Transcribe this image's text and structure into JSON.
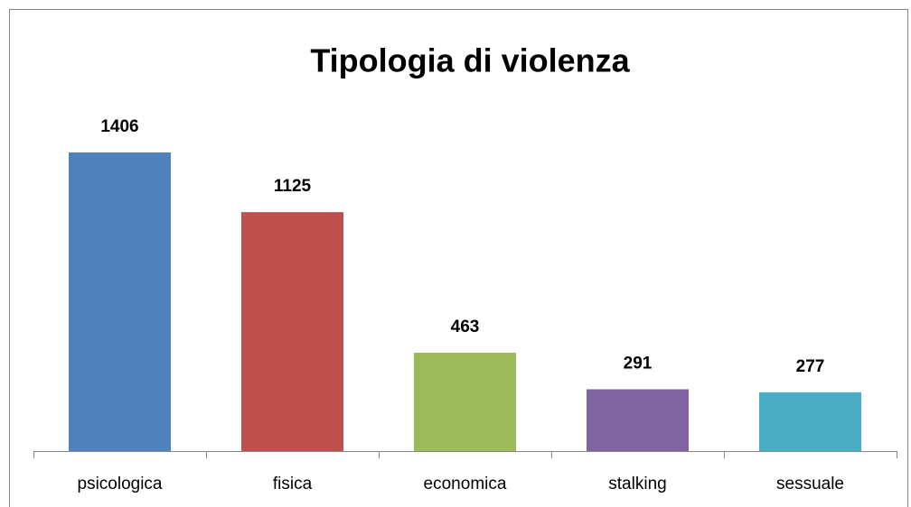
{
  "chart_data": {
    "type": "bar",
    "title": "Tipologia di violenza",
    "categories": [
      "psicologica",
      "fisica",
      "economica",
      "stalking",
      "sessuale"
    ],
    "values": [
      1406,
      1125,
      463,
      291,
      277
    ],
    "colors": [
      "#4f81bd",
      "#c0504d",
      "#9bbb59",
      "#8064a2",
      "#4bacc6"
    ]
  }
}
